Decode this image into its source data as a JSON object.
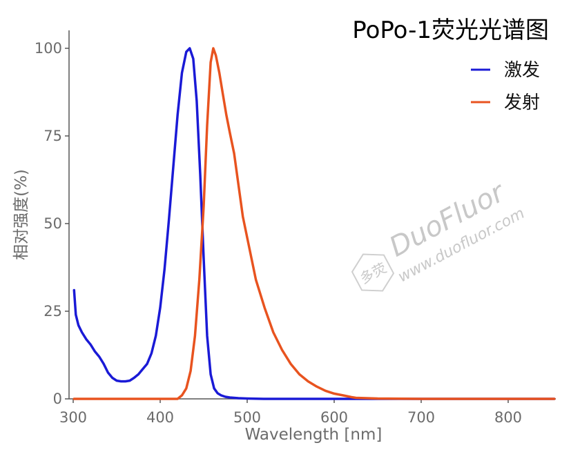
{
  "chart_data": {
    "type": "line",
    "title": "PoPo-1荧光光谱图",
    "xlabel": "Wavelength [nm]",
    "ylabel": "相对强度(%)",
    "xlim": [
      298,
      853
    ],
    "ylim": [
      0,
      105
    ],
    "xticks": [
      300,
      400,
      500,
      600,
      700,
      800
    ],
    "yticks": [
      0,
      25,
      50,
      75,
      100
    ],
    "grid": false,
    "legend_position": "top-right",
    "series": [
      {
        "name": "激发",
        "color": "#1a1ad6",
        "x": [
          301,
          303,
          306,
          310,
          315,
          320,
          325,
          330,
          335,
          340,
          345,
          350,
          355,
          360,
          365,
          370,
          375,
          380,
          385,
          390,
          395,
          400,
          405,
          410,
          415,
          420,
          425,
          430,
          434,
          438,
          442,
          446,
          450,
          454,
          458,
          462,
          466,
          470,
          475,
          480,
          490,
          500,
          520,
          550,
          600,
          650,
          700,
          750,
          800,
          853
        ],
        "y": [
          31,
          24,
          21,
          19,
          17,
          15.5,
          13.5,
          12,
          10,
          7.5,
          6,
          5.2,
          5,
          5,
          5.2,
          6,
          7,
          8.5,
          10,
          13,
          18,
          26,
          37,
          51,
          66,
          81,
          93,
          99,
          100,
          97,
          85,
          64,
          40,
          18,
          7,
          3,
          1.6,
          1,
          0.6,
          0.4,
          0.2,
          0.1,
          0,
          0,
          0,
          0,
          0,
          0,
          0,
          0
        ]
      },
      {
        "name": "发射",
        "color": "#e8531f",
        "x": [
          301,
          350,
          400,
          420,
          425,
          430,
          435,
          440,
          445,
          450,
          454,
          458,
          461,
          464,
          468,
          472,
          476,
          480,
          485,
          490,
          495,
          500,
          505,
          510,
          520,
          530,
          540,
          550,
          560,
          570,
          580,
          590,
          600,
          610,
          620,
          625,
          650,
          700,
          750,
          800,
          853
        ],
        "y": [
          0,
          0,
          0,
          0,
          1,
          3,
          8,
          18,
          34,
          55,
          78,
          96,
          100,
          98,
          93,
          87,
          81,
          76,
          70,
          61,
          52,
          46,
          40,
          34,
          26,
          19,
          14,
          10,
          7,
          5,
          3.5,
          2.3,
          1.5,
          1,
          0.5,
          0.3,
          0.1,
          0,
          0,
          0,
          0
        ]
      }
    ]
  },
  "watermark": {
    "logo_text": "多荧",
    "brand": "DuoFluor",
    "url": "www.duofluor.com"
  }
}
